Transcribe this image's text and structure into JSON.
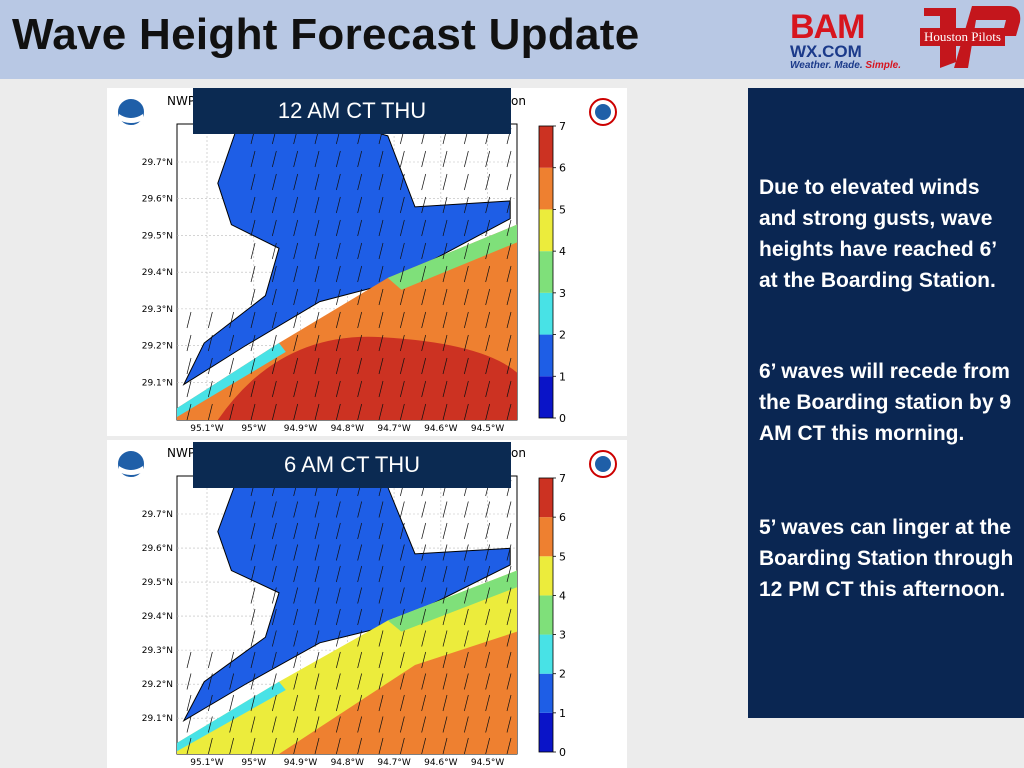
{
  "slide": {
    "title": "Wave Height Forecast Update"
  },
  "logos": {
    "bam": {
      "main": "BAM",
      "sub": "WX.COM",
      "tagline_blue": "Weather. Made. ",
      "tagline_red": "Simple."
    },
    "houston_pilots": {
      "label": "Houston Pilots"
    }
  },
  "panels": [
    {
      "time_label": "12 AM CT THU",
      "header_left": "NWP",
      "header_right": "on",
      "lat_labels": [
        "29.7°N",
        "29.6°N",
        "29.5°N",
        "29.4°N",
        "29.3°N",
        "29.2°N",
        "29.1°N"
      ],
      "lon_labels": [
        "95.1°W",
        "95°W",
        "94.9°W",
        "94.8°W",
        "94.7°W",
        "94.6°W",
        "94.5°W"
      ],
      "colorbar_ticks": [
        "0",
        "1",
        "2",
        "3",
        "4",
        "5",
        "6",
        "7"
      ]
    },
    {
      "time_label": "6 AM CT THU",
      "header_left": "NWP",
      "header_right": "on",
      "lat_labels": [
        "29.7°N",
        "29.6°N",
        "29.5°N",
        "29.4°N",
        "29.3°N",
        "29.2°N",
        "29.1°N"
      ],
      "lon_labels": [
        "95.1°W",
        "95°W",
        "94.9°W",
        "94.8°W",
        "94.7°W",
        "94.6°W",
        "94.5°W"
      ],
      "colorbar_ticks": [
        "0",
        "1",
        "2",
        "3",
        "4",
        "5",
        "6",
        "7"
      ]
    }
  ],
  "colorscale": [
    "#0a14c8",
    "#1e5ee6",
    "#48e2e6",
    "#7fe07a",
    "#ecec3c",
    "#ee8030",
    "#cc3222"
  ],
  "textbox": {
    "p1": "Due to elevated winds and strong gusts, wave heights have reached 6’ at the Boarding Station.",
    "p2": "6’ waves will recede from the Boarding station by 9 AM CT this morning.",
    "p3": "5’ waves can linger at the Boarding Station through 12 PM CT this afternoon."
  }
}
